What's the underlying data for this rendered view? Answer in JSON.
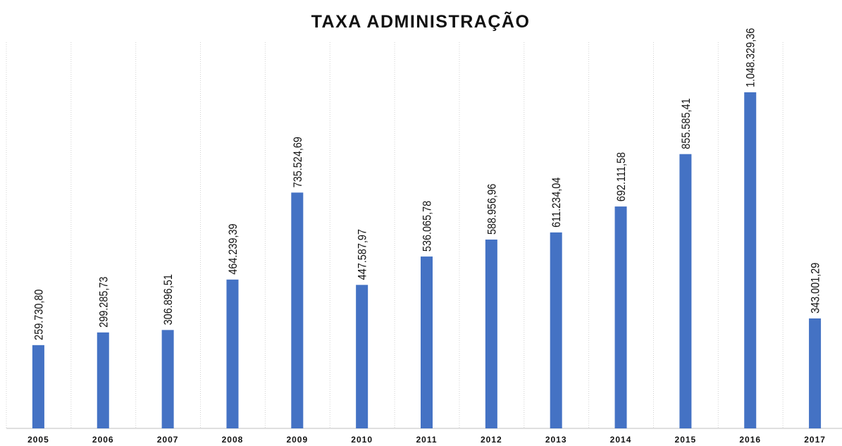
{
  "chart_data": {
    "type": "bar",
    "title": "TAXA ADMINISTRAÇÃO",
    "categories": [
      "2005",
      "2006",
      "2007",
      "2008",
      "2009",
      "2010",
      "2011",
      "2012",
      "2013",
      "2014",
      "2015",
      "2016",
      "2017"
    ],
    "values": [
      259730.8,
      299285.73,
      306896.51,
      464239.39,
      735524.69,
      447587.97,
      536065.78,
      588956.96,
      611234.04,
      692111.58,
      855585.41,
      1048329.36,
      343001.29
    ],
    "value_labels": [
      "259.730,80",
      "299.285,73",
      "306.896,51",
      "464.239,39",
      "735.524,69",
      "447.587,97",
      "536.065,78",
      "588.956,96",
      "611.234,04",
      "692.111,58",
      "855.585,41",
      "1.048.329,36",
      "343.001,29"
    ],
    "color": "#4472c4"
  }
}
